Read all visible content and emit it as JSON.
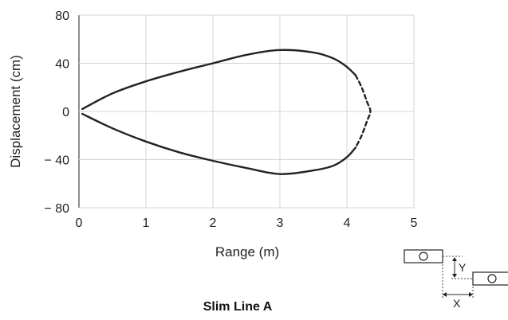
{
  "chart_data": {
    "type": "line",
    "title": "Slim Line A",
    "xlabel": "Range (m)",
    "ylabel": "Displacement (cm)",
    "xlim": [
      0,
      5
    ],
    "ylim": [
      -80,
      80
    ],
    "x_ticks": [
      "0",
      "1",
      "2",
      "3",
      "4",
      "5"
    ],
    "y_ticks": [
      "80",
      "40",
      "0",
      "− 40",
      "− 80"
    ],
    "x_tick_values": [
      0,
      1,
      2,
      3,
      4,
      5
    ],
    "y_tick_values": [
      80,
      40,
      0,
      -40,
      -80
    ],
    "grid": true,
    "colors": {
      "grid": "#d4d4d4",
      "curve": "#222222",
      "axis": "#444444"
    },
    "series": [
      {
        "style": "solid",
        "x": [
          0.05,
          0.5,
          1.0,
          1.5,
          2.0,
          2.5,
          3.0,
          3.5,
          3.8,
          4.0,
          4.13
        ],
        "y": [
          2,
          15,
          25,
          33,
          40,
          47,
          51,
          49,
          44,
          37,
          30
        ]
      },
      {
        "style": "dashed",
        "x": [
          4.13,
          4.22,
          4.3,
          4.35,
          4.3,
          4.22,
          4.13
        ],
        "y": [
          30,
          20,
          8,
          0,
          -8,
          -20,
          -30
        ]
      },
      {
        "style": "solid",
        "x": [
          4.13,
          4.0,
          3.8,
          3.5,
          3.0,
          2.5,
          2.0,
          1.5,
          1.0,
          0.5,
          0.05
        ],
        "y": [
          -30,
          -38,
          -45,
          -49,
          -52,
          -47,
          -41,
          -34,
          -25,
          -14,
          -2
        ]
      }
    ]
  },
  "inset": {
    "label_y": "Y",
    "label_x": "X"
  }
}
